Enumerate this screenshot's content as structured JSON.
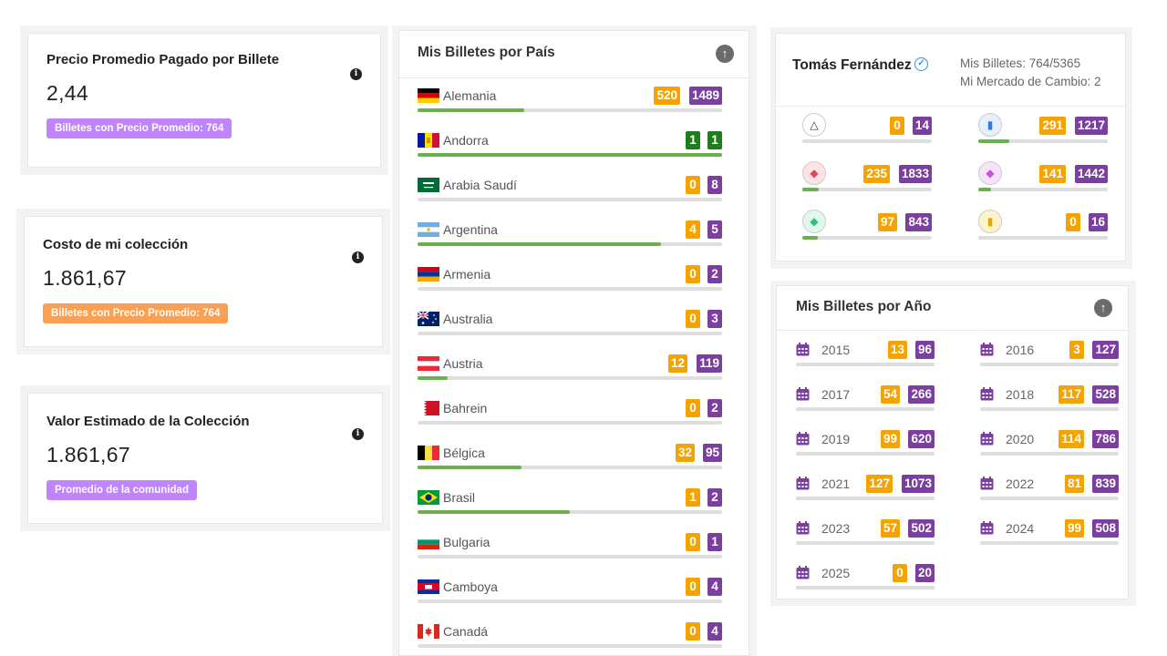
{
  "stats": [
    {
      "title": "Precio Promedio Pagado por Billete",
      "value": "2,44",
      "badge": "Billetes con Precio Promedio: 764",
      "badge_color": "#c084fc"
    },
    {
      "title": "Costo de mi colección",
      "value": "1.861,67",
      "badge": "Billetes con Precio Promedio: 764",
      "badge_color": "#fba052"
    },
    {
      "title": "Valor Estimado de la Colección",
      "value": "1.861,67",
      "badge": "Promedio de la comunidad",
      "badge_color": "#c084fc"
    }
  ],
  "countries_panel": {
    "title": "Mis Billetes por País",
    "items": [
      {
        "name": "Alemania",
        "flag": "germany-flag",
        "a": "520",
        "b": "1489",
        "progress": 0.35,
        "a_color": "#f5a300",
        "b_color": "#7b3fa0"
      },
      {
        "name": "Andorra",
        "flag": "andorra-flag",
        "a": "1",
        "b": "1",
        "progress": 1.0,
        "a_color": "#1e7e1e",
        "b_color": "#1e7e1e"
      },
      {
        "name": "Arabia Saudí",
        "flag": "saudi-arabia-flag",
        "a": "0",
        "b": "8",
        "progress": 0.0
      },
      {
        "name": "Argentina",
        "flag": "argentina-flag",
        "a": "4",
        "b": "5",
        "progress": 0.8
      },
      {
        "name": "Armenia",
        "flag": "armenia-flag",
        "a": "0",
        "b": "2",
        "progress": 0.0
      },
      {
        "name": "Australia",
        "flag": "australia-flag",
        "a": "0",
        "b": "3",
        "progress": 0.0
      },
      {
        "name": "Austria",
        "flag": "austria-flag",
        "a": "12",
        "b": "119",
        "progress": 0.1
      },
      {
        "name": "Bahrein",
        "flag": "bahrain-flag",
        "a": "0",
        "b": "2",
        "progress": 0.0
      },
      {
        "name": "Bélgica",
        "flag": "belgium-flag",
        "a": "32",
        "b": "95",
        "progress": 0.34
      },
      {
        "name": "Brasil",
        "flag": "brazil-flag",
        "a": "1",
        "b": "2",
        "progress": 0.5
      },
      {
        "name": "Bulgaria",
        "flag": "bulgaria-flag",
        "a": "0",
        "b": "1",
        "progress": 0.0
      },
      {
        "name": "Camboya",
        "flag": "cambodia-flag",
        "a": "0",
        "b": "4",
        "progress": 0.0
      },
      {
        "name": "Canadá",
        "flag": "canada-flag",
        "a": "0",
        "b": "4",
        "progress": 0.0
      }
    ]
  },
  "profile": {
    "name": "Tomás Fernández",
    "billetes": "Mis Billetes: 764/5365",
    "mercado": "Mi Mercado de Cambio: 2",
    "gems": [
      {
        "icon": "triangle-badge-icon",
        "a": "0",
        "b": "14",
        "progress": 0.0
      },
      {
        "icon": "blue-gem-badge-icon",
        "a": "291",
        "b": "1217",
        "progress": 0.24
      },
      {
        "icon": "red-gem-badge-icon",
        "a": "235",
        "b": "1833",
        "progress": 0.13
      },
      {
        "icon": "pink-gem-badge-icon",
        "a": "141",
        "b": "1442",
        "progress": 0.1
      },
      {
        "icon": "green-gem-badge-icon",
        "a": "97",
        "b": "843",
        "progress": 0.12
      },
      {
        "icon": "gold-badge-icon",
        "a": "0",
        "b": "16",
        "progress": 0.0
      }
    ]
  },
  "years_panel": {
    "title": "Mis Billetes por Año",
    "items": [
      {
        "year": "2015",
        "a": "13",
        "b": "96"
      },
      {
        "year": "2016",
        "a": "3",
        "b": "127"
      },
      {
        "year": "2017",
        "a": "54",
        "b": "266"
      },
      {
        "year": "2018",
        "a": "117",
        "b": "528"
      },
      {
        "year": "2019",
        "a": "99",
        "b": "620"
      },
      {
        "year": "2020",
        "a": "114",
        "b": "786"
      },
      {
        "year": "2021",
        "a": "127",
        "b": "1073"
      },
      {
        "year": "2022",
        "a": "81",
        "b": "839"
      },
      {
        "year": "2023",
        "a": "57",
        "b": "502"
      },
      {
        "year": "2024",
        "a": "99",
        "b": "508"
      },
      {
        "year": "2025",
        "a": "0",
        "b": "20"
      }
    ]
  },
  "colors": {
    "orange": "#f5a300",
    "purple": "#7b3fa0",
    "green_bar": "#6ab04c",
    "bar_bg": "#dedede"
  }
}
